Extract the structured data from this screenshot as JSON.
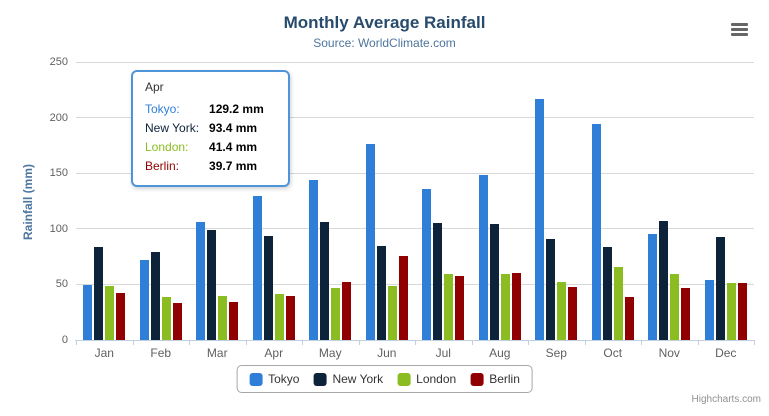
{
  "header": {
    "title": "Monthly Average Rainfall",
    "subtitle": "Source: WorldClimate.com"
  },
  "chart_data": {
    "type": "bar",
    "title": "Monthly Average Rainfall",
    "subtitle": "Source: WorldClimate.com",
    "categories": [
      "Jan",
      "Feb",
      "Mar",
      "Apr",
      "May",
      "Jun",
      "Jul",
      "Aug",
      "Sep",
      "Oct",
      "Nov",
      "Dec"
    ],
    "series": [
      {
        "name": "Tokyo",
        "color": "#2f7ed8",
        "values": [
          49.9,
          71.5,
          106.4,
          129.2,
          144.0,
          176.0,
          135.6,
          148.5,
          216.4,
          194.1,
          95.6,
          54.4
        ]
      },
      {
        "name": "New York",
        "color": "#0d233a",
        "values": [
          83.6,
          78.8,
          98.5,
          93.4,
          106.0,
          84.5,
          105.0,
          104.3,
          91.2,
          83.5,
          106.6,
          92.3
        ]
      },
      {
        "name": "London",
        "color": "#8bbc21",
        "values": [
          48.9,
          38.8,
          39.3,
          41.4,
          47.0,
          48.3,
          59.0,
          59.6,
          52.4,
          65.2,
          59.3,
          51.2
        ]
      },
      {
        "name": "Berlin",
        "color": "#910000",
        "values": [
          42.4,
          33.2,
          34.5,
          39.7,
          52.6,
          75.5,
          57.4,
          60.4,
          47.6,
          39.1,
          46.8,
          51.1
        ]
      }
    ],
    "xlabel": "",
    "ylabel": "Rainfall (mm)",
    "ylim": [
      0,
      250
    ],
    "ytick_interval": 50,
    "yticks": [
      0,
      50,
      100,
      150,
      200,
      250
    ],
    "grid": true,
    "legend_position": "bottom"
  },
  "tooltip": {
    "header": "Apr",
    "rows": [
      {
        "label": "Tokyo:",
        "value": "129.2 mm",
        "color": "#2f7ed8"
      },
      {
        "label": "New York:",
        "value": "93.4 mm",
        "color": "#0d233a"
      },
      {
        "label": "London:",
        "value": "41.4 mm",
        "color": "#8bbc21"
      },
      {
        "label": "Berlin:",
        "value": "39.7 mm",
        "color": "#910000"
      }
    ],
    "border_color": "#4e94d8"
  },
  "legend": {
    "items": [
      {
        "label": "Tokyo",
        "color": "#2f7ed8"
      },
      {
        "label": "New York",
        "color": "#0d233a"
      },
      {
        "label": "London",
        "color": "#8bbc21"
      },
      {
        "label": "Berlin",
        "color": "#910000"
      }
    ]
  },
  "credits": {
    "text": "Highcharts.com"
  },
  "colors": {
    "title": "#274b6d",
    "subtitle": "#4d759e",
    "axis_title": "#4d759e",
    "axis_label": "#606060",
    "gridline": "#d8d8d8",
    "axis_line": "#c0d0e0"
  }
}
